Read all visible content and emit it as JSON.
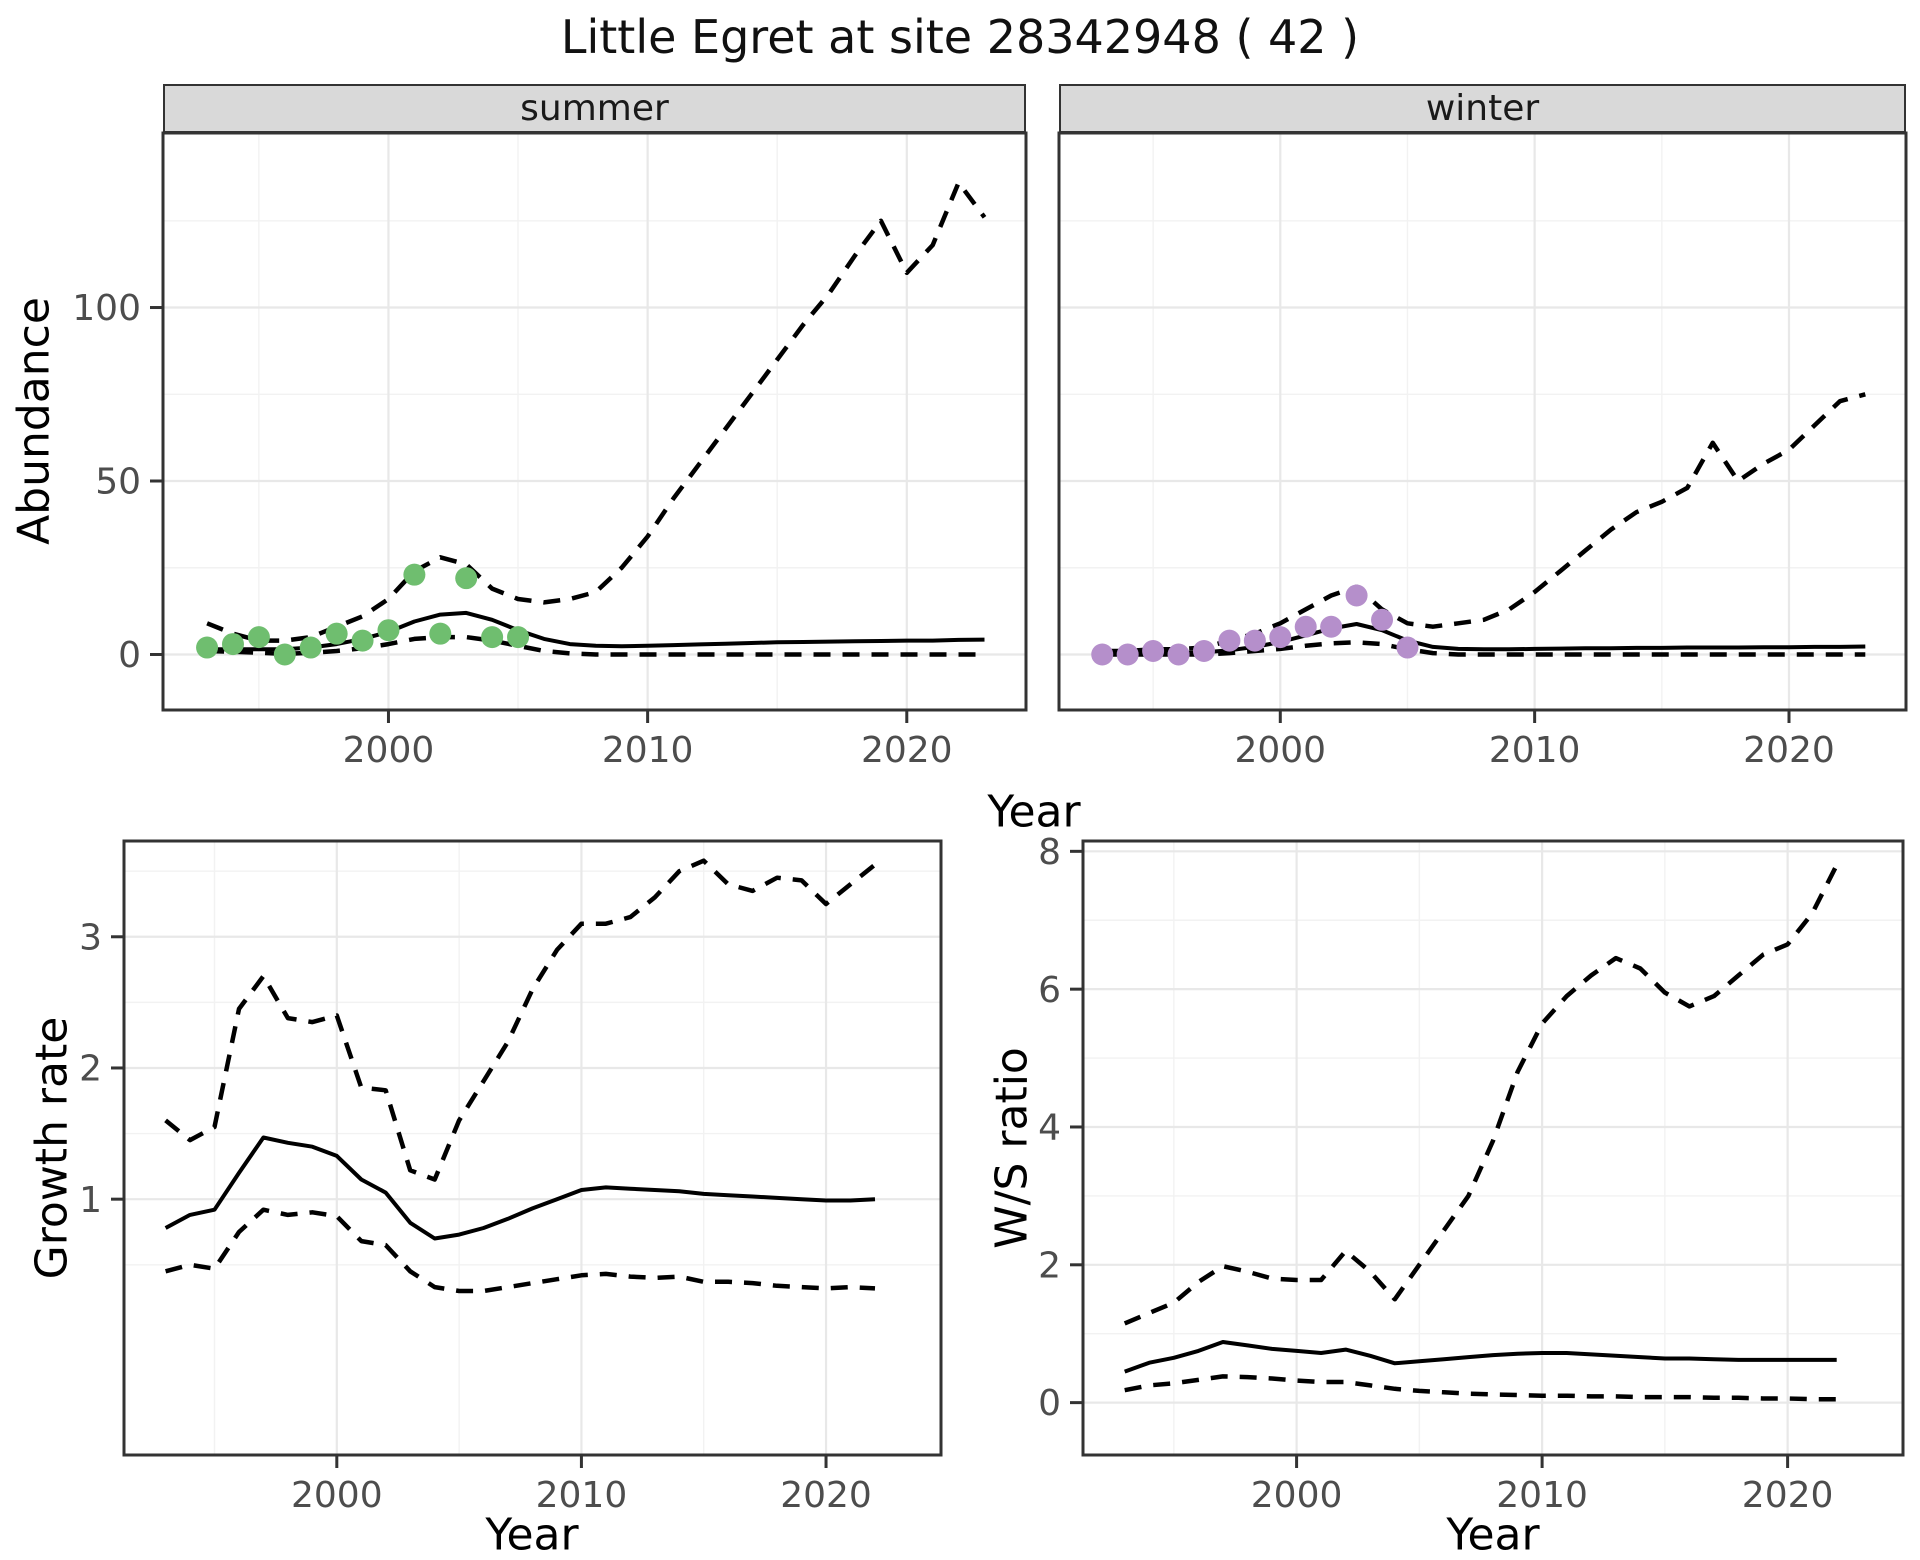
{
  "title": "Little Egret at site 28342948 ( 42 )",
  "colors": {
    "line": "#000000",
    "summer_points": "#6fbe6f",
    "winter_points": "#b58fcb",
    "grid_major": "#e8e8e8",
    "grid_minor": "#f2f2f2",
    "panel_border": "#333333",
    "tick": "#333333",
    "tick_label": "#4d4d4d",
    "strip_bg": "#d9d9d9"
  },
  "chart_data": [
    {
      "id": "abundance-summer",
      "type": "line",
      "facet_label": "summer",
      "ylabel": "Abundance",
      "xlabel": "Year",
      "xlim": [
        1991.3,
        2024.6
      ],
      "ylim": [
        -16,
        150.3
      ],
      "x_ticks": [
        2000,
        2010,
        2020
      ],
      "y_ticks": [
        0,
        50,
        100
      ],
      "series": [
        {
          "name": "upper-ci",
          "style": "dashed",
          "x": [
            1993,
            1994,
            1995,
            1996,
            1997,
            1998,
            1999,
            2000,
            2001,
            2002,
            2003,
            2004,
            2005,
            2006,
            2007,
            2008,
            2009,
            2010,
            2011,
            2012,
            2013,
            2014,
            2015,
            2016,
            2017,
            2018,
            2019,
            2020,
            2021,
            2022,
            2023
          ],
          "y": [
            9,
            6,
            4,
            4,
            5,
            8,
            11,
            16,
            24,
            28,
            26,
            19,
            16,
            15,
            16,
            18,
            25,
            34,
            45,
            55,
            65,
            75,
            85,
            95,
            104,
            115,
            125,
            110,
            118,
            136,
            126
          ]
        },
        {
          "name": "median",
          "style": "solid",
          "x": [
            1993,
            1994,
            1995,
            1996,
            1997,
            1998,
            1999,
            2000,
            2001,
            2002,
            2003,
            2004,
            2005,
            2006,
            2007,
            2008,
            2009,
            2010,
            2011,
            2012,
            2013,
            2014,
            2015,
            2016,
            2017,
            2018,
            2019,
            2020,
            2021,
            2022,
            2023
          ],
          "y": [
            1.5,
            1.5,
            1.5,
            1.5,
            2,
            3,
            4.5,
            6.5,
            9.5,
            11.5,
            12,
            10,
            7,
            4.5,
            3,
            2.5,
            2.4,
            2.5,
            2.7,
            2.9,
            3.1,
            3.3,
            3.5,
            3.6,
            3.7,
            3.8,
            3.9,
            4,
            4,
            4.2,
            4.3
          ]
        },
        {
          "name": "lower-ci",
          "style": "dashed",
          "x": [
            1993,
            1994,
            1995,
            1996,
            1997,
            1998,
            1999,
            2000,
            2001,
            2002,
            2003,
            2004,
            2005,
            2006,
            2007,
            2008,
            2009,
            2010,
            2011,
            2012,
            2013,
            2014,
            2015,
            2016,
            2017,
            2018,
            2019,
            2020,
            2021,
            2022,
            2023
          ],
          "y": [
            1,
            0.8,
            0.5,
            0.2,
            0.5,
            1,
            1.8,
            3,
            4.5,
            5,
            5,
            4,
            2.5,
            1,
            0.3,
            0,
            0,
            0,
            0,
            0,
            0,
            0,
            0,
            0,
            0,
            0,
            0,
            0,
            0,
            0,
            0
          ]
        },
        {
          "name": "observed",
          "style": "points",
          "color": "#6fbe6f",
          "x": [
            1993,
            1994,
            1995,
            1996,
            1997,
            1998,
            1999,
            2000,
            2001,
            2002,
            2003,
            2004,
            2005
          ],
          "y": [
            2,
            3,
            5,
            0,
            2,
            6,
            4,
            7,
            23,
            6,
            22,
            5,
            5
          ]
        }
      ]
    },
    {
      "id": "abundance-winter",
      "type": "line",
      "facet_label": "winter",
      "ylabel": "Abundance",
      "xlabel": "Year",
      "xlim": [
        1991.3,
        2024.6
      ],
      "ylim": [
        -16,
        150.3
      ],
      "x_ticks": [
        2000,
        2010,
        2020
      ],
      "y_ticks": [
        0,
        50,
        100
      ],
      "series": [
        {
          "name": "upper-ci",
          "style": "dashed",
          "x": [
            1993,
            1994,
            1995,
            1996,
            1997,
            1998,
            1999,
            2000,
            2001,
            2002,
            2003,
            2004,
            2005,
            2006,
            2007,
            2008,
            2009,
            2010,
            2011,
            2012,
            2013,
            2014,
            2015,
            2016,
            2017,
            2018,
            2019,
            2020,
            2021,
            2022,
            2023
          ],
          "y": [
            1,
            1,
            1.5,
            1.5,
            2,
            4,
            6,
            9,
            13,
            17,
            19.5,
            13,
            9,
            8,
            9,
            10,
            13,
            18,
            24,
            30,
            36,
            41,
            44,
            48,
            61,
            50,
            55,
            59,
            66,
            73,
            75
          ]
        },
        {
          "name": "median",
          "style": "solid",
          "x": [
            1993,
            1994,
            1995,
            1996,
            1997,
            1998,
            1999,
            2000,
            2001,
            2002,
            2003,
            2004,
            2005,
            2006,
            2007,
            2008,
            2009,
            2010,
            2011,
            2012,
            2013,
            2014,
            2015,
            2016,
            2017,
            2018,
            2019,
            2020,
            2021,
            2022,
            2023
          ],
          "y": [
            0.3,
            0.3,
            0.4,
            0.4,
            0.6,
            1.2,
            2.2,
            3.6,
            5.5,
            7.5,
            8.8,
            7,
            4,
            2.2,
            1.6,
            1.5,
            1.5,
            1.6,
            1.7,
            1.8,
            1.8,
            1.9,
            1.9,
            2,
            2,
            2,
            2.1,
            2.1,
            2.2,
            2.2,
            2.3
          ]
        },
        {
          "name": "lower-ci",
          "style": "dashed",
          "x": [
            1993,
            1994,
            1995,
            1996,
            1997,
            1998,
            1999,
            2000,
            2001,
            2002,
            2003,
            2004,
            2005,
            2006,
            2007,
            2008,
            2009,
            2010,
            2011,
            2012,
            2013,
            2014,
            2015,
            2016,
            2017,
            2018,
            2019,
            2020,
            2021,
            2022,
            2023
          ],
          "y": [
            0,
            0,
            0,
            0,
            0,
            0.4,
            1,
            1.6,
            2.5,
            3.2,
            3.5,
            3,
            1.5,
            0.4,
            0,
            0,
            0,
            0,
            0,
            0,
            0,
            0,
            0,
            0,
            0,
            0,
            0,
            0,
            0,
            0,
            0
          ]
        },
        {
          "name": "observed",
          "style": "points",
          "color": "#b58fcb",
          "x": [
            1993,
            1994,
            1995,
            1996,
            1997,
            1998,
            1999,
            2000,
            2001,
            2002,
            2003,
            2004,
            2005
          ],
          "y": [
            0,
            0,
            1,
            0,
            1,
            4,
            4,
            5,
            8,
            8,
            17,
            10,
            2
          ]
        }
      ]
    },
    {
      "id": "growth-rate",
      "type": "line",
      "facet_label": "",
      "ylabel": "Growth rate",
      "xlabel": "Year",
      "xlim": [
        1991.3,
        2024.7
      ],
      "ylim": [
        -0.95,
        3.73
      ],
      "x_ticks": [
        2000,
        2010,
        2020
      ],
      "y_ticks": [
        1,
        2,
        3
      ],
      "series": [
        {
          "name": "upper-ci",
          "style": "dashed",
          "x": [
            1993,
            1994,
            1995,
            1996,
            1997,
            1998,
            1999,
            2000,
            2001,
            2002,
            2003,
            2004,
            2005,
            2006,
            2007,
            2008,
            2009,
            2010,
            2011,
            2012,
            2013,
            2014,
            2015,
            2016,
            2017,
            2018,
            2019,
            2020,
            2021,
            2022
          ],
          "y": [
            1.6,
            1.45,
            1.55,
            2.45,
            2.7,
            2.38,
            2.35,
            2.4,
            1.85,
            1.83,
            1.22,
            1.15,
            1.6,
            1.9,
            2.2,
            2.6,
            2.9,
            3.1,
            3.1,
            3.15,
            3.3,
            3.5,
            3.58,
            3.4,
            3.35,
            3.45,
            3.43,
            3.25,
            3.4,
            3.55
          ]
        },
        {
          "name": "median",
          "style": "solid",
          "x": [
            1993,
            1994,
            1995,
            1996,
            1997,
            1998,
            1999,
            2000,
            2001,
            2002,
            2003,
            2004,
            2005,
            2006,
            2007,
            2008,
            2009,
            2010,
            2011,
            2012,
            2013,
            2014,
            2015,
            2016,
            2017,
            2018,
            2019,
            2020,
            2021,
            2022
          ],
          "y": [
            0.78,
            0.88,
            0.92,
            1.2,
            1.47,
            1.43,
            1.4,
            1.33,
            1.15,
            1.05,
            0.82,
            0.7,
            0.73,
            0.78,
            0.85,
            0.93,
            1.0,
            1.07,
            1.09,
            1.08,
            1.07,
            1.06,
            1.04,
            1.03,
            1.02,
            1.01,
            1.0,
            0.99,
            0.99,
            1.0
          ]
        },
        {
          "name": "lower-ci",
          "style": "dashed",
          "x": [
            1993,
            1994,
            1995,
            1996,
            1997,
            1998,
            1999,
            2000,
            2001,
            2002,
            2003,
            2004,
            2005,
            2006,
            2007,
            2008,
            2009,
            2010,
            2011,
            2012,
            2013,
            2014,
            2015,
            2016,
            2017,
            2018,
            2019,
            2020,
            2021,
            2022
          ],
          "y": [
            0.45,
            0.5,
            0.47,
            0.75,
            0.92,
            0.88,
            0.9,
            0.87,
            0.68,
            0.65,
            0.45,
            0.33,
            0.3,
            0.3,
            0.33,
            0.36,
            0.39,
            0.42,
            0.43,
            0.41,
            0.4,
            0.41,
            0.37,
            0.37,
            0.36,
            0.34,
            0.33,
            0.32,
            0.33,
            0.32
          ]
        }
      ]
    },
    {
      "id": "ws-ratio",
      "type": "line",
      "facet_label": "",
      "ylabel": "W/S ratio",
      "xlabel": "Year",
      "xlim": [
        1991.3,
        2024.7
      ],
      "ylim": [
        -0.76,
        8.15
      ],
      "x_ticks": [
        2000,
        2010,
        2020
      ],
      "y_ticks": [
        0,
        2,
        4,
        6,
        8
      ],
      "series": [
        {
          "name": "upper-ci",
          "style": "dashed",
          "x": [
            1993,
            1994,
            1995,
            1996,
            1997,
            1998,
            1999,
            2000,
            2001,
            2002,
            2003,
            2004,
            2005,
            2006,
            2007,
            2008,
            2009,
            2010,
            2011,
            2012,
            2013,
            2014,
            2015,
            2016,
            2017,
            2018,
            2019,
            2020,
            2021,
            2022
          ],
          "y": [
            1.15,
            1.3,
            1.45,
            1.75,
            1.98,
            1.9,
            1.8,
            1.78,
            1.78,
            2.2,
            1.9,
            1.5,
            2.0,
            2.5,
            3.0,
            3.8,
            4.8,
            5.5,
            5.9,
            6.2,
            6.45,
            6.3,
            5.95,
            5.75,
            5.9,
            6.2,
            6.5,
            6.65,
            7.1,
            7.8
          ]
        },
        {
          "name": "median",
          "style": "solid",
          "x": [
            1993,
            1994,
            1995,
            1996,
            1997,
            1998,
            1999,
            2000,
            2001,
            2002,
            2003,
            2004,
            2005,
            2006,
            2007,
            2008,
            2009,
            2010,
            2011,
            2012,
            2013,
            2014,
            2015,
            2016,
            2017,
            2018,
            2019,
            2020,
            2021,
            2022
          ],
          "y": [
            0.45,
            0.58,
            0.65,
            0.75,
            0.88,
            0.83,
            0.78,
            0.75,
            0.72,
            0.77,
            0.68,
            0.57,
            0.6,
            0.63,
            0.66,
            0.69,
            0.71,
            0.72,
            0.72,
            0.7,
            0.68,
            0.66,
            0.64,
            0.64,
            0.63,
            0.62,
            0.62,
            0.62,
            0.62,
            0.62
          ]
        },
        {
          "name": "lower-ci",
          "style": "dashed",
          "x": [
            1993,
            1994,
            1995,
            1996,
            1997,
            1998,
            1999,
            2000,
            2001,
            2002,
            2003,
            2004,
            2005,
            2006,
            2007,
            2008,
            2009,
            2010,
            2011,
            2012,
            2013,
            2014,
            2015,
            2016,
            2017,
            2018,
            2019,
            2020,
            2021,
            2022
          ],
          "y": [
            0.18,
            0.25,
            0.28,
            0.33,
            0.38,
            0.37,
            0.35,
            0.32,
            0.3,
            0.3,
            0.25,
            0.2,
            0.17,
            0.15,
            0.13,
            0.12,
            0.11,
            0.1,
            0.1,
            0.09,
            0.09,
            0.08,
            0.08,
            0.08,
            0.07,
            0.07,
            0.06,
            0.06,
            0.05,
            0.05
          ]
        }
      ]
    }
  ]
}
